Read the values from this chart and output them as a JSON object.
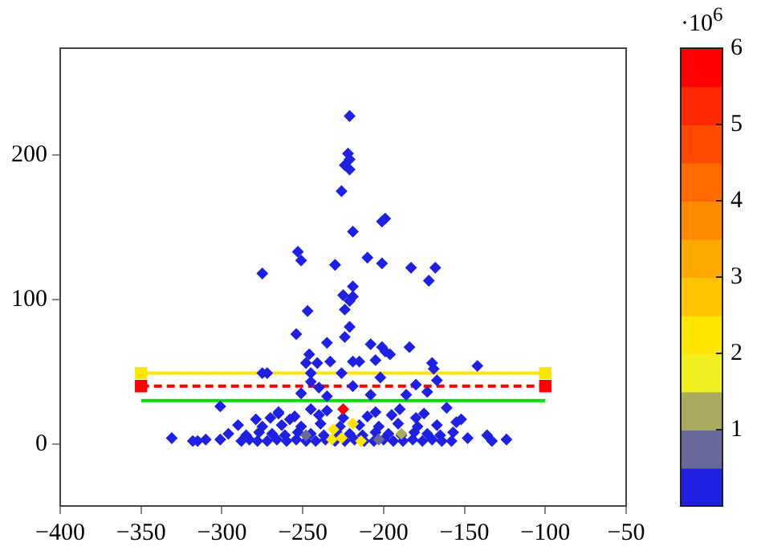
{
  "chart_data": {
    "type": "scatter",
    "xlim": [
      -400,
      -50
    ],
    "xticks": [
      -400,
      -350,
      -300,
      -250,
      -200,
      -150,
      -100,
      -50
    ],
    "ylim": [
      -43,
      274
    ],
    "yticks": [
      0,
      100,
      200
    ],
    "grid": false,
    "legend": false,
    "clim": [
      0,
      6
    ],
    "cticks": [
      1,
      2,
      3,
      4,
      5,
      6
    ],
    "clabel": "·10$^{6}$",
    "series": [
      {
        "type": "line",
        "color": "#00e000",
        "marker": "none",
        "line_style": "solid",
        "x": [
          -350,
          -100
        ],
        "values": [
          30,
          30
        ]
      },
      {
        "type": "line",
        "color": "#ff0000",
        "marker": "square",
        "line_style": "dashed",
        "x": [
          -350,
          -100
        ],
        "values": [
          40,
          40
        ]
      },
      {
        "type": "line",
        "color": "#ffe600",
        "marker": "square",
        "line_style": "solid",
        "x": [
          -350,
          -100
        ],
        "values": [
          49,
          49
        ]
      },
      {
        "type": "scatter",
        "marker": "diamond",
        "colors": [
          "#2020e0",
          "#2020e0",
          "#2020e0",
          "#2020e0",
          "#2020e0",
          "#2020e0",
          "#2020e0",
          "#2020e0",
          "#2020e0",
          "#2020e0",
          "#2020e0",
          "#2020e0",
          "#2020e0",
          "#2020e0",
          "#2020e0",
          "#2020e0",
          "#2020e0",
          "#2020e0",
          "#2020e0",
          "#2020e0",
          "#2020e0",
          "#2020e0",
          "#2020e0",
          "#2020e0",
          "#2020e0",
          "#2020e0",
          "#2020e0",
          "#2020e0",
          "#2020e0",
          "#2020e0",
          "#2020e0",
          "#2020e0",
          "#2020e0",
          "#2020e0",
          "#2020e0",
          "#2020e0",
          "#2020e0",
          "#2020e0",
          "#2020e0",
          "#2020e0",
          "#2020e0",
          "#2020e0",
          "#2020e0",
          "#2020e0",
          "#2020e0",
          "#2020e0",
          "#2020e0",
          "#2020e0",
          "#2020e0",
          "#2020e0",
          "#2020e0",
          "#2020e0",
          "#2020e0",
          "#2020e0",
          "#2020e0",
          "#2020e0",
          "#2020e0",
          "#2020e0",
          "#2020e0",
          "#2020e0",
          "#2020e0",
          "#2020e0",
          "#2020e0",
          "#2020e0",
          "#2020e0",
          "#2020e0",
          "#2020e0",
          "#2020e0",
          "#2020e0",
          "#2020e0",
          "#2020e0",
          "#2020e0",
          "#2020e0",
          "#2020e0",
          "#2020e0",
          "#2020e0",
          "#2020e0",
          "#2020e0",
          "#2020e0",
          "#2020e0",
          "#2020e0",
          "#2020e0",
          "#2020e0",
          "#2020e0",
          "#2020e0",
          "#2020e0",
          "#2020e0",
          "#2020e0",
          "#2020e0",
          "#2020e0",
          "#2020e0",
          "#2020e0",
          "#2020e0",
          "#2020e0",
          "#2020e0",
          "#2020e0",
          "#2020e0",
          "#2020e0",
          "#2020e0",
          "#2020e0",
          "#2020e0",
          "#2020e0",
          "#2020e0",
          "#2020e0",
          "#2020e0",
          "#2020e0",
          "#2020e0",
          "#2020e0",
          "#2020e0",
          "#2020e0",
          "#2020e0",
          "#2020e0",
          "#2020e0",
          "#2020e0",
          "#2020e0",
          "#2020e0",
          "#2020e0",
          "#2020e0",
          "#2020e0",
          "#2020e0",
          "#2020e0",
          "#2020e0",
          "#2020e0",
          "#2020e0",
          "#2020e0",
          "#2020e0",
          "#2020e0",
          "#2020e0",
          "#2020e0",
          "#2020e0",
          "#2020e0",
          "#2020e0",
          "#2020e0",
          "#2020e0",
          "#2020e0",
          "#2020e0",
          "#2020e0",
          "#2020e0",
          "#2020e0",
          "#ff0000",
          "#ffe600",
          "#ffe600",
          "#ffe600",
          "#ffe600",
          "#ffe600",
          "#6a6a9a",
          "#6a6a9a",
          "#aaaa60"
        ],
        "x": [
          -221,
          -222,
          -221,
          -224,
          -221,
          -226,
          -201,
          -199,
          -219,
          -253,
          -251,
          -275,
          -230,
          -210,
          -201,
          -183,
          -168,
          -172,
          -219,
          -225,
          -219,
          -221,
          -224,
          -247,
          -221,
          -254,
          -224,
          -235,
          -208,
          -184,
          -201,
          -199,
          -196,
          -205,
          -246,
          -248,
          -241,
          -233,
          -219,
          -215,
          -170,
          -169,
          -142,
          -275,
          -272,
          -245,
          -226,
          -202,
          -245,
          -240,
          -219,
          -180,
          -167,
          -251,
          -235,
          -208,
          -186,
          -173,
          -301,
          -161,
          -331,
          -318,
          -315,
          -310,
          -301,
          -296,
          -290,
          -279,
          -265,
          -258,
          -148,
          -136,
          -133,
          -124,
          -155,
          -152,
          -288,
          -283,
          -278,
          -272,
          -266,
          -260,
          -254,
          -248,
          -242,
          -236,
          -230,
          -224,
          -218,
          -212,
          -206,
          -200,
          -194,
          -188,
          -182,
          -176,
          -170,
          -164,
          -158,
          -285,
          -277,
          -269,
          -261,
          -253,
          -245,
          -237,
          -229,
          -221,
          -213,
          -205,
          -197,
          -189,
          -181,
          -173,
          -165,
          -157,
          -275,
          -263,
          -251,
          -239,
          -227,
          -215,
          -203,
          -191,
          -179,
          -167,
          -270,
          -255,
          -240,
          -225,
          -210,
          -195,
          -180,
          -265,
          -245,
          -235,
          -205,
          -190,
          -175,
          -225,
          -231,
          -219,
          -232,
          -226,
          -214,
          -248,
          -203,
          -189
        ],
        "values": [
          227,
          201,
          197,
          193,
          190,
          175,
          154,
          156,
          147,
          133,
          127,
          118,
          124,
          129,
          125,
          122,
          122,
          113,
          109,
          103,
          102,
          99,
          93,
          92,
          81,
          76,
          74,
          70,
          69,
          67,
          67,
          64,
          62,
          58,
          62,
          56,
          56,
          57,
          57,
          57,
          56,
          52,
          54,
          49,
          49,
          49,
          49,
          46,
          43,
          39,
          40,
          41,
          44,
          35,
          33,
          34,
          34,
          36,
          26,
          25,
          4,
          2,
          2,
          3,
          3,
          7,
          13,
          17,
          21,
          17,
          4,
          6,
          2,
          3,
          15,
          17,
          2,
          3,
          2,
          2,
          3,
          2,
          3,
          2,
          2,
          3,
          2,
          2,
          3,
          2,
          2,
          3,
          2,
          2,
          3,
          2,
          3,
          2,
          2,
          6,
          8,
          7,
          6,
          8,
          7,
          6,
          8,
          7,
          6,
          8,
          7,
          6,
          8,
          7,
          6,
          8,
          12,
          13,
          12,
          14,
          12,
          13,
          12,
          14,
          12,
          13,
          18,
          19,
          20,
          18,
          19,
          20,
          18,
          22,
          24,
          23,
          22,
          24,
          21,
          24,
          10,
          14,
          3,
          4,
          2,
          6,
          3,
          7
        ],
        "cvalues": [
          0.2,
          0.2,
          0.2,
          0.2,
          0.2,
          0.2,
          0.2,
          0.2,
          0.2,
          0.2,
          0.2,
          0.2,
          0.2,
          0.2,
          0.2,
          0.2,
          0.2,
          0.2,
          0.2,
          0.2,
          0.2,
          0.2,
          0.2,
          0.2,
          0.2,
          0.2,
          0.2,
          0.2,
          0.2,
          0.2,
          0.2,
          0.2,
          0.2,
          0.2,
          0.2,
          0.2,
          0.2,
          0.2,
          0.2,
          0.2,
          0.2,
          0.2,
          0.2,
          0.2,
          0.2,
          0.2,
          0.2,
          0.2,
          0.2,
          0.2,
          0.2,
          0.2,
          0.2,
          0.2,
          0.2,
          0.2,
          0.2,
          0.2,
          0.2,
          0.2,
          0.2,
          0.2,
          0.2,
          0.2,
          0.2,
          0.2,
          0.2,
          0.2,
          0.2,
          0.2,
          0.2,
          0.2,
          0.2,
          0.2,
          0.2,
          0.2,
          0.2,
          0.2,
          0.2,
          0.2,
          0.2,
          0.2,
          0.2,
          0.2,
          0.2,
          0.2,
          0.2,
          0.2,
          0.2,
          0.2,
          0.2,
          0.2,
          0.2,
          0.2,
          0.2,
          0.2,
          0.2,
          0.2,
          0.2,
          0.2,
          0.2,
          0.2,
          0.2,
          0.2,
          0.2,
          0.2,
          0.2,
          0.2,
          0.2,
          0.2,
          0.2,
          0.2,
          0.2,
          0.2,
          0.2,
          0.2,
          0.2,
          0.2,
          0.2,
          0.2,
          0.2,
          0.2,
          0.2,
          0.2,
          0.2,
          0.2,
          0.2,
          0.2,
          0.2,
          0.2,
          0.2,
          0.2,
          0.2,
          0.2,
          0.2,
          0.2,
          0.2,
          0.2,
          0.2,
          5.8,
          2.2,
          2.2,
          2.2,
          2.2,
          2.2,
          0.7,
          0.7,
          1.2
        ]
      }
    ]
  }
}
